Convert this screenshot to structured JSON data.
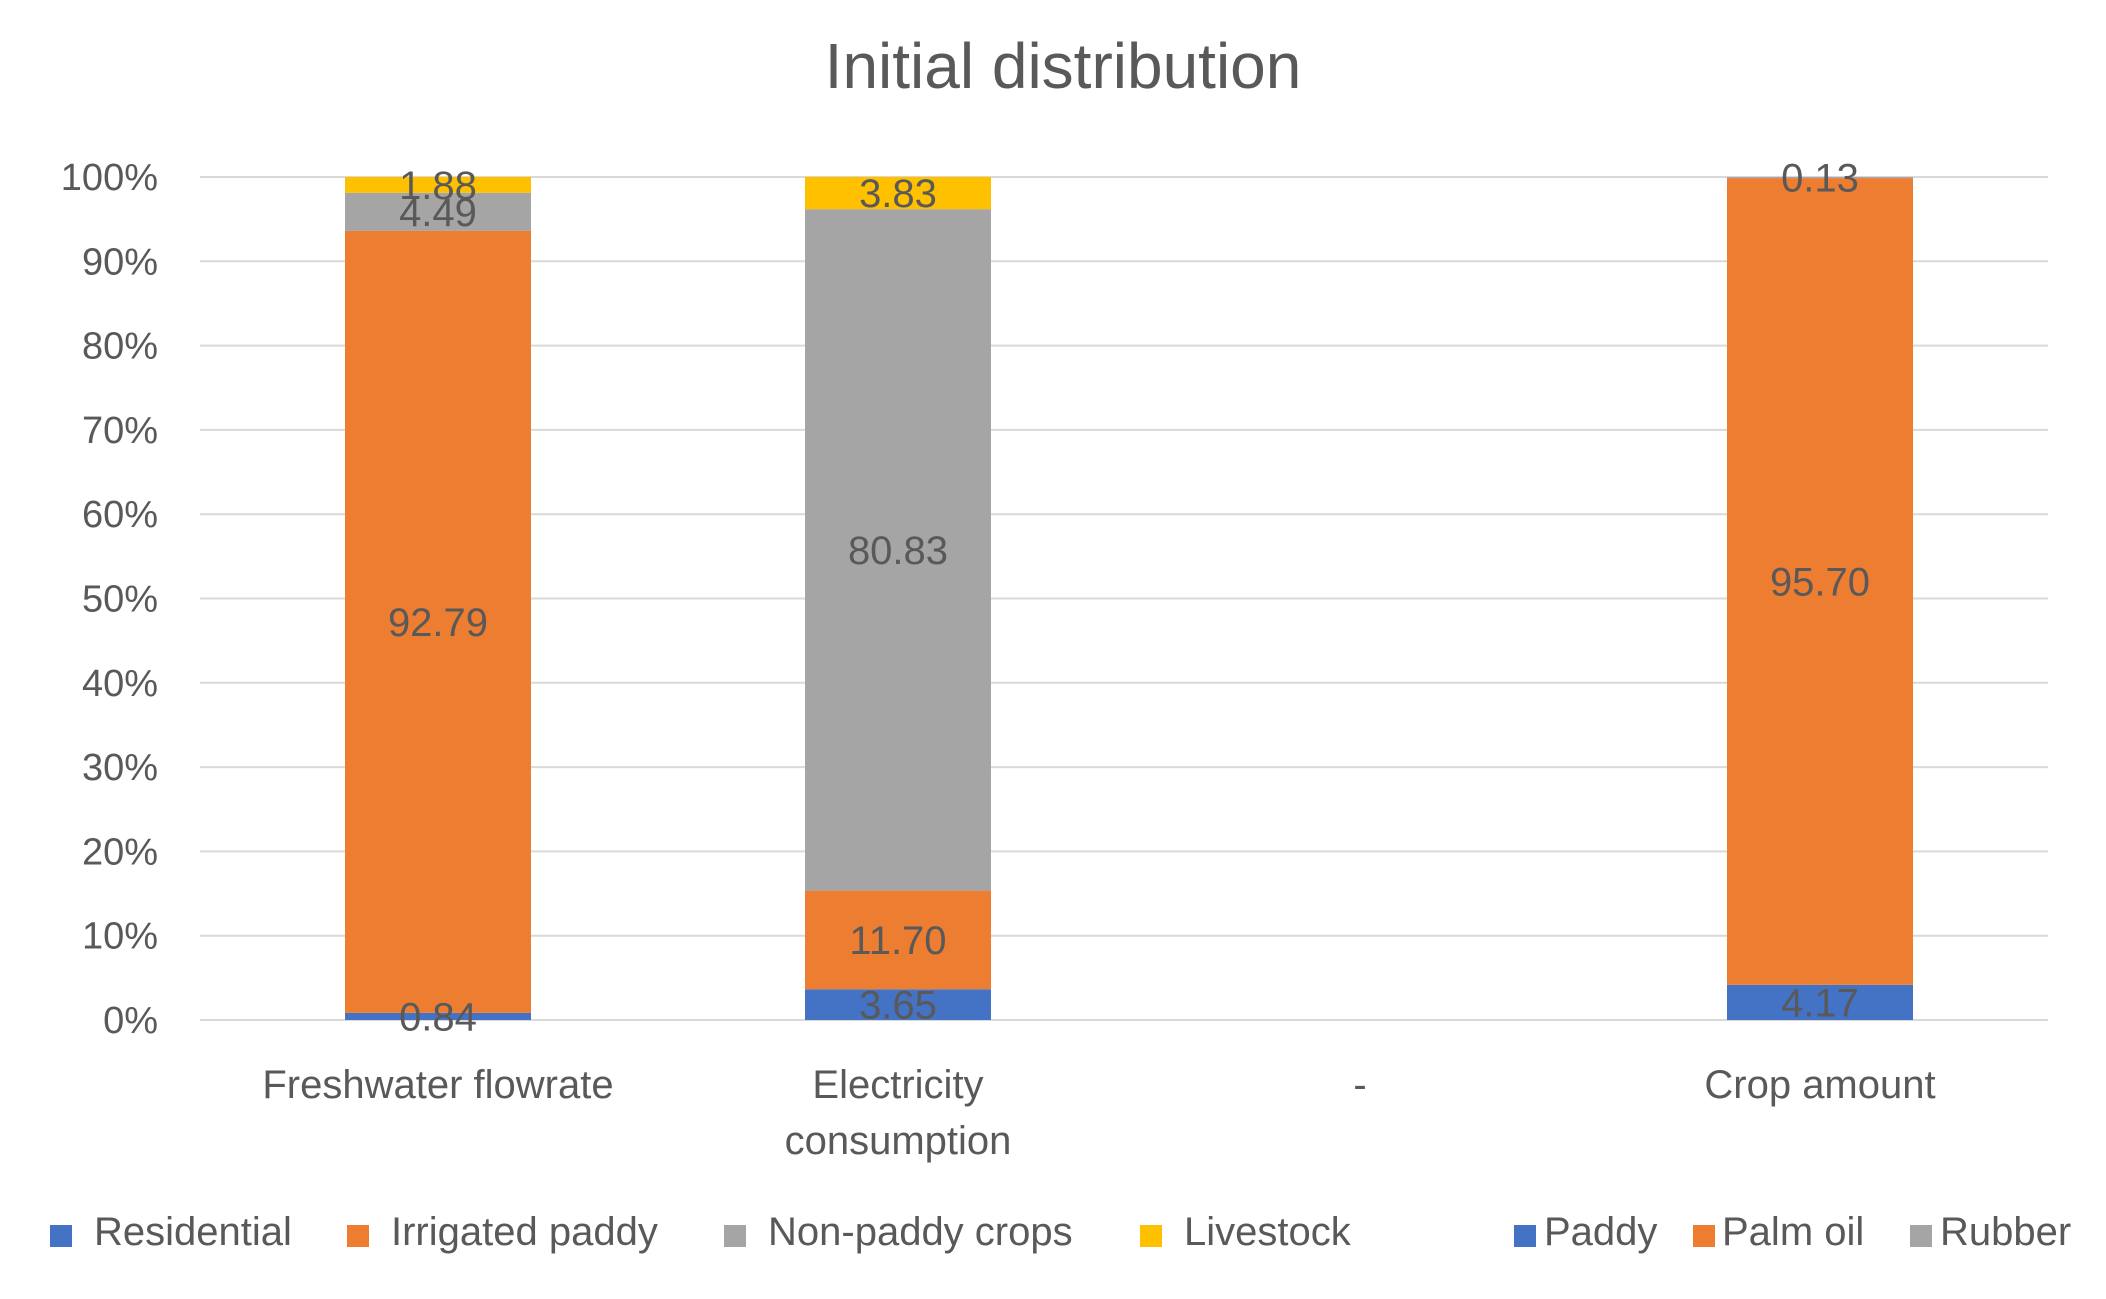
{
  "chart_data": {
    "type": "bar",
    "stacked": true,
    "title": "Initial distribution",
    "xlabel": "",
    "ylabel": "",
    "ylim": [
      0,
      100
    ],
    "yticks": [
      "0%",
      "10%",
      "20%",
      "30%",
      "40%",
      "50%",
      "60%",
      "70%",
      "80%",
      "90%",
      "100%"
    ],
    "grid": true,
    "categories": [
      {
        "lines": [
          "Freshwater flowrate"
        ]
      },
      {
        "lines": [
          "Electricity",
          "consumption"
        ]
      },
      {
        "lines": [
          "-"
        ]
      },
      {
        "lines": [
          "Crop amount"
        ]
      }
    ],
    "series": [
      {
        "name": "Residential",
        "color": "#4472C4",
        "values": [
          0.84,
          3.65,
          null,
          null
        ],
        "labels": [
          "0.84",
          "3.65",
          null,
          null
        ]
      },
      {
        "name": "Irrigated paddy",
        "color": "#ED7D31",
        "values": [
          92.79,
          11.7,
          null,
          null
        ],
        "labels": [
          "92.79",
          "11.70",
          null,
          null
        ]
      },
      {
        "name": "Non-paddy crops",
        "color": "#A5A5A5",
        "values": [
          4.49,
          80.83,
          null,
          null
        ],
        "labels": [
          "4.49",
          "80.83",
          null,
          null
        ]
      },
      {
        "name": "Livestock",
        "color": "#FFC000",
        "values": [
          1.88,
          3.83,
          null,
          null
        ],
        "labels": [
          "1.88",
          "3.83",
          null,
          null
        ]
      },
      {
        "name": "Paddy",
        "color": "#4472C4",
        "values": [
          null,
          null,
          null,
          4.17
        ],
        "labels": [
          null,
          null,
          null,
          "4.17"
        ]
      },
      {
        "name": "Palm oil",
        "color": "#ED7D31",
        "values": [
          null,
          null,
          null,
          95.7
        ],
        "labels": [
          null,
          null,
          null,
          "95.70"
        ]
      },
      {
        "name": "Rubber",
        "color": "#A5A5A5",
        "values": [
          null,
          null,
          null,
          0.13
        ],
        "labels": [
          null,
          null,
          null,
          "0.13"
        ]
      }
    ],
    "legend": {
      "position": "bottom"
    }
  }
}
